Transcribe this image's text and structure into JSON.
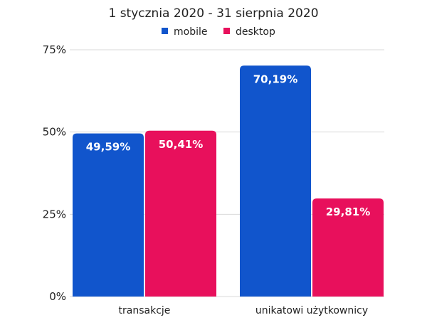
{
  "colors": {
    "mobile": "#1155cc",
    "desktop": "#e8105c"
  },
  "chart_data": {
    "type": "bar",
    "title": "1 stycznia 2020 - 31 sierpnia 2020",
    "xlabel": "",
    "ylabel": "",
    "categories": [
      "transakcje",
      "unikatowi użytkownicy"
    ],
    "ylim": [
      0,
      75
    ],
    "yticks": [
      0,
      25,
      50,
      75
    ],
    "ytick_labels": [
      "0%",
      "25%",
      "50%",
      "75%"
    ],
    "grid": true,
    "legend": "top-center",
    "series": [
      {
        "name": "mobile",
        "values": [
          49.59,
          70.19
        ],
        "labels": [
          "49,59%",
          "70,19%"
        ]
      },
      {
        "name": "desktop",
        "values": [
          50.41,
          29.81
        ],
        "labels": [
          "50,41%",
          "29,81%"
        ]
      }
    ]
  }
}
